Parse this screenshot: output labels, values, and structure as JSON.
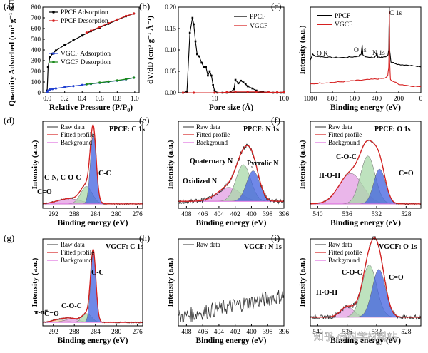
{
  "chart_data": [
    {
      "id": "a",
      "type": "scatter",
      "panel_label": "(a)",
      "xlabel": "Relative Pressure (P/P",
      "xlabel_sub": "0",
      "xlabel_tail": ")",
      "ylabel": "Quantity Adsorbed (cm³ g⁻¹ STP)",
      "xlim": [
        -0.05,
        1.05
      ],
      "ylim": [
        0,
        800
      ],
      "xticks": [
        "0.0",
        "0.2",
        "0.4",
        "0.6",
        "0.8",
        "1.0"
      ],
      "yticks": [
        "0",
        "100",
        "200",
        "300",
        "400",
        "500",
        "600",
        "700",
        "800"
      ],
      "series": [
        {
          "name": "PPCF Adsorption",
          "color": "#000000",
          "x": [
            0.0,
            0.01,
            0.03,
            0.06,
            0.1,
            0.2,
            0.3,
            0.4,
            0.5,
            0.6,
            0.7,
            0.8,
            0.9,
            0.99
          ],
          "y": [
            20,
            240,
            330,
            365,
            395,
            445,
            490,
            535,
            575,
            610,
            645,
            680,
            715,
            740
          ]
        },
        {
          "name": "PPCF Desorption",
          "color": "#d62020",
          "x": [
            0.99,
            0.9,
            0.8,
            0.7,
            0.6,
            0.5,
            0.45
          ],
          "y": [
            740,
            718,
            684,
            650,
            615,
            580,
            562
          ]
        },
        {
          "name": "VGCF Adsorption",
          "color": "#2040d0",
          "x": [
            0.0,
            0.01,
            0.03,
            0.06,
            0.1,
            0.2,
            0.3,
            0.4,
            0.5,
            0.6,
            0.7,
            0.8,
            0.9,
            0.99
          ],
          "y": [
            5,
            20,
            30,
            35,
            40,
            52,
            62,
            72,
            82,
            92,
            102,
            112,
            125,
            140
          ]
        },
        {
          "name": "VGCF Desorption",
          "color": "#1a8a1a",
          "x": [
            0.99,
            0.9,
            0.8,
            0.7,
            0.6,
            0.5,
            0.45
          ],
          "y": [
            140,
            127,
            114,
            104,
            94,
            84,
            79
          ]
        }
      ]
    },
    {
      "id": "b",
      "type": "line",
      "panel_label": "(b)",
      "xlabel": "Pore size (Å)",
      "ylabel": "dV/dD (cm³ g⁻¹ Å⁻¹)",
      "xscale": "log",
      "xlim": [
        3,
        100
      ],
      "ylim": [
        0,
        0.2
      ],
      "xticks": [
        "10",
        "100"
      ],
      "yticks": [
        "0.00",
        "0.05",
        "0.10",
        "0.15",
        "0.20"
      ],
      "series": [
        {
          "name": "PPCF",
          "color": "#000000",
          "x": [
            3.5,
            4.0,
            4.4,
            4.8,
            5.0,
            5.3,
            5.6,
            6.0,
            6.5,
            7.0,
            7.5,
            8.0,
            8.5,
            9.0,
            9.5,
            10.0,
            11,
            13,
            15,
            17,
            19,
            20,
            22,
            24,
            26,
            28,
            30,
            35,
            40,
            50,
            60,
            70,
            80,
            90,
            100
          ],
          "y": [
            0.0,
            0.003,
            0.14,
            0.175,
            0.16,
            0.12,
            0.09,
            0.085,
            0.07,
            0.06,
            0.06,
            0.04,
            0.05,
            0.04,
            0.018,
            0.005,
            0.0,
            0.0,
            0.0,
            0.002,
            0.008,
            0.03,
            0.022,
            0.028,
            0.024,
            0.02,
            0.015,
            0.01,
            0.005,
            0.002,
            0.001,
            0.0,
            0.0,
            0.0,
            0.0
          ]
        },
        {
          "name": "VGCF",
          "color": "#d62020",
          "x": [
            3.5,
            5,
            10,
            15,
            20,
            30,
            40,
            60,
            80,
            100
          ],
          "y": [
            0.0,
            0.0,
            0.0,
            0.001,
            0.002,
            0.002,
            0.002,
            0.001,
            0.001,
            0.001
          ]
        }
      ]
    },
    {
      "id": "c",
      "type": "line",
      "panel_label": "(c)",
      "xlabel": "Binding energy (eV)",
      "ylabel": "Intensity (a.u.)",
      "xlim": [
        1000,
        0
      ],
      "ylim": [
        0,
        1
      ],
      "xticks": [
        "1000",
        "800",
        "600",
        "400",
        "200",
        "0"
      ],
      "annotations": [
        "O K",
        "O 1s",
        "N 1s",
        "C 1s"
      ],
      "series": [
        {
          "name": "PPCF",
          "color": "#000000",
          "x": [
            1000,
            980,
            960,
            900,
            800,
            700,
            600,
            560,
            540,
            531,
            525,
            500,
            420,
            405,
            398,
            390,
            350,
            300,
            290,
            285,
            282,
            270,
            200,
            100,
            0
          ],
          "y": [
            0.38,
            0.45,
            0.43,
            0.42,
            0.41,
            0.41,
            0.42,
            0.43,
            0.45,
            0.56,
            0.44,
            0.42,
            0.41,
            0.43,
            0.47,
            0.42,
            0.41,
            0.43,
            0.5,
            1.0,
            0.5,
            0.36,
            0.33,
            0.32,
            0.3
          ]
        },
        {
          "name": "VGCF",
          "color": "#d62020",
          "x": [
            1000,
            900,
            800,
            700,
            600,
            500,
            400,
            320,
            300,
            290,
            285,
            282,
            275,
            200,
            100,
            0
          ],
          "y": [
            0.1,
            0.115,
            0.12,
            0.13,
            0.14,
            0.15,
            0.16,
            0.17,
            0.2,
            0.3,
            0.95,
            0.35,
            0.15,
            0.1,
            0.08,
            0.07
          ]
        }
      ]
    },
    {
      "id": "d",
      "type": "area",
      "panel_label": "(d)",
      "title": "PPCF: C 1s",
      "xlabel": "Binding energy (eV)",
      "ylabel": "Intensity (a.u.)",
      "xlim": [
        294,
        275
      ],
      "ylim": [
        0,
        1
      ],
      "xticks": [
        "292",
        "288",
        "284",
        "280",
        "276"
      ],
      "legend": [
        "Raw data",
        "Fitted profile",
        "Background"
      ],
      "components": [
        {
          "name": "C=O",
          "label_color": "#d02ad0",
          "color": "#e39de3",
          "center": 289.0,
          "height": 0.06,
          "width": 2.2
        },
        {
          "name": "C-N, C-O-C",
          "label_color": "#1a8a1a",
          "color": "#a8d8a8",
          "center": 285.7,
          "height": 0.2,
          "width": 1.1
        },
        {
          "name": "C-C",
          "label_color": "#2040d0",
          "color": "#4060e0",
          "center": 284.4,
          "height": 0.8,
          "width": 0.55
        }
      ],
      "background_level": 0.05
    },
    {
      "id": "e",
      "type": "area",
      "panel_label": "(e)",
      "title": "PPCF: N 1s",
      "xlabel": "Binding energy (eV)",
      "ylabel": "Intensity (a.u.)",
      "xlim": [
        409,
        396
      ],
      "ylim": [
        0,
        1
      ],
      "xticks": [
        "408",
        "406",
        "404",
        "402",
        "400",
        "398",
        "396"
      ],
      "legend": [
        "Raw data",
        "Fitted profile",
        "Background"
      ],
      "components": [
        {
          "name": "Oxidized N",
          "label_color": "#d02ad0",
          "color": "#e39de3",
          "center": 402.8,
          "height": 0.16,
          "width": 1.4
        },
        {
          "name": "Quaternary N",
          "label_color": "#1a8a1a",
          "color": "#a8d8a8",
          "center": 401.0,
          "height": 0.42,
          "width": 0.9
        },
        {
          "name": "Pyrrolic N",
          "label_color": "#2040d0",
          "color": "#4060e0",
          "center": 399.8,
          "height": 0.35,
          "width": 0.8
        }
      ],
      "background_level": 0.08
    },
    {
      "id": "f",
      "type": "area",
      "panel_label": "(f)",
      "title": "PPCF: O 1s",
      "xlabel": "Binding energy (eV)",
      "ylabel": "Intensity (a.u.)",
      "xlim": [
        541,
        526
      ],
      "ylim": [
        0,
        1
      ],
      "xticks": [
        "540",
        "536",
        "532",
        "528"
      ],
      "legend": [
        "Raw data",
        "Fitted profile",
        "Background"
      ],
      "components": [
        {
          "name": "H-O-H",
          "label_color": "#d02ad0",
          "color": "#e39de3",
          "center": 535.5,
          "height": 0.35,
          "width": 1.6
        },
        {
          "name": "C-O-C",
          "label_color": "#1a8a1a",
          "color": "#a8d8a8",
          "center": 533.2,
          "height": 0.55,
          "width": 1.0
        },
        {
          "name": "C=O",
          "label_color": "#2040d0",
          "color": "#4060e0",
          "center": 531.6,
          "height": 0.4,
          "width": 0.8
        }
      ],
      "background_level": 0.05
    },
    {
      "id": "g",
      "type": "area",
      "panel_label": "(g)",
      "title": "VGCF: C 1s",
      "xlabel": "Binding energy (eV)",
      "ylabel": "Intensity (a.u.)",
      "xlim": [
        294,
        275
      ],
      "ylim": [
        0,
        1
      ],
      "xticks": [
        "292",
        "288",
        "284",
        "280",
        "276"
      ],
      "legend": [
        "Raw data",
        "Fitted profile",
        "Background"
      ],
      "components": [
        {
          "name": "π-π*",
          "label_color": "#d07a10",
          "color": "#f0c8a0",
          "center": 290.8,
          "height": 0.03,
          "width": 1.4
        },
        {
          "name": "C=O",
          "label_color": "#d02ad0",
          "color": "#e39de3",
          "center": 288.5,
          "height": 0.04,
          "width": 1.4
        },
        {
          "name": "C-O-C",
          "label_color": "#1a8a1a",
          "color": "#a8d8a8",
          "center": 285.6,
          "height": 0.1,
          "width": 0.9
        },
        {
          "name": "C-C",
          "label_color": "#2040d0",
          "color": "#4060e0",
          "center": 284.4,
          "height": 0.8,
          "width": 0.5
        }
      ],
      "background_level": 0.04
    },
    {
      "id": "h",
      "type": "line",
      "panel_label": "(h)",
      "title": "VGCF: N 1s",
      "xlabel": "Binding energy (eV)",
      "ylabel": "Intensity (a.u.)",
      "xlim": [
        409,
        396
      ],
      "ylim": [
        0,
        1
      ],
      "xticks": [
        "408",
        "406",
        "404",
        "402",
        "400",
        "398",
        "396"
      ],
      "legend": [
        "Raw data"
      ]
    },
    {
      "id": "i",
      "type": "area",
      "panel_label": "(i)",
      "title": "VGCF: O 1s",
      "xlabel": "Binding energy (eV)",
      "ylabel": "Intensity (a.u.)",
      "xlim": [
        541,
        526
      ],
      "ylim": [
        0,
        1
      ],
      "xticks": [
        "540",
        "536",
        "532",
        "528"
      ],
      "xticks_note": "partially hidden by watermark",
      "legend": [
        "Raw data",
        "Fitted profile",
        "Background"
      ],
      "components": [
        {
          "name": "H-O-H",
          "label_color": "#d02ad0",
          "color": "#e39de3",
          "center": 536.0,
          "height": 0.12,
          "width": 0.9
        },
        {
          "name": "C-O-C",
          "label_color": "#1a8a1a",
          "color": "#a8d8a8",
          "center": 533.0,
          "height": 0.6,
          "width": 1.0
        },
        {
          "name": "C=O",
          "label_color": "#2040d0",
          "color": "#4060e0",
          "center": 531.7,
          "height": 0.55,
          "width": 0.9
        }
      ],
      "background_level": 0.1
    }
  ],
  "watermark": "知乎 @科学材料站"
}
